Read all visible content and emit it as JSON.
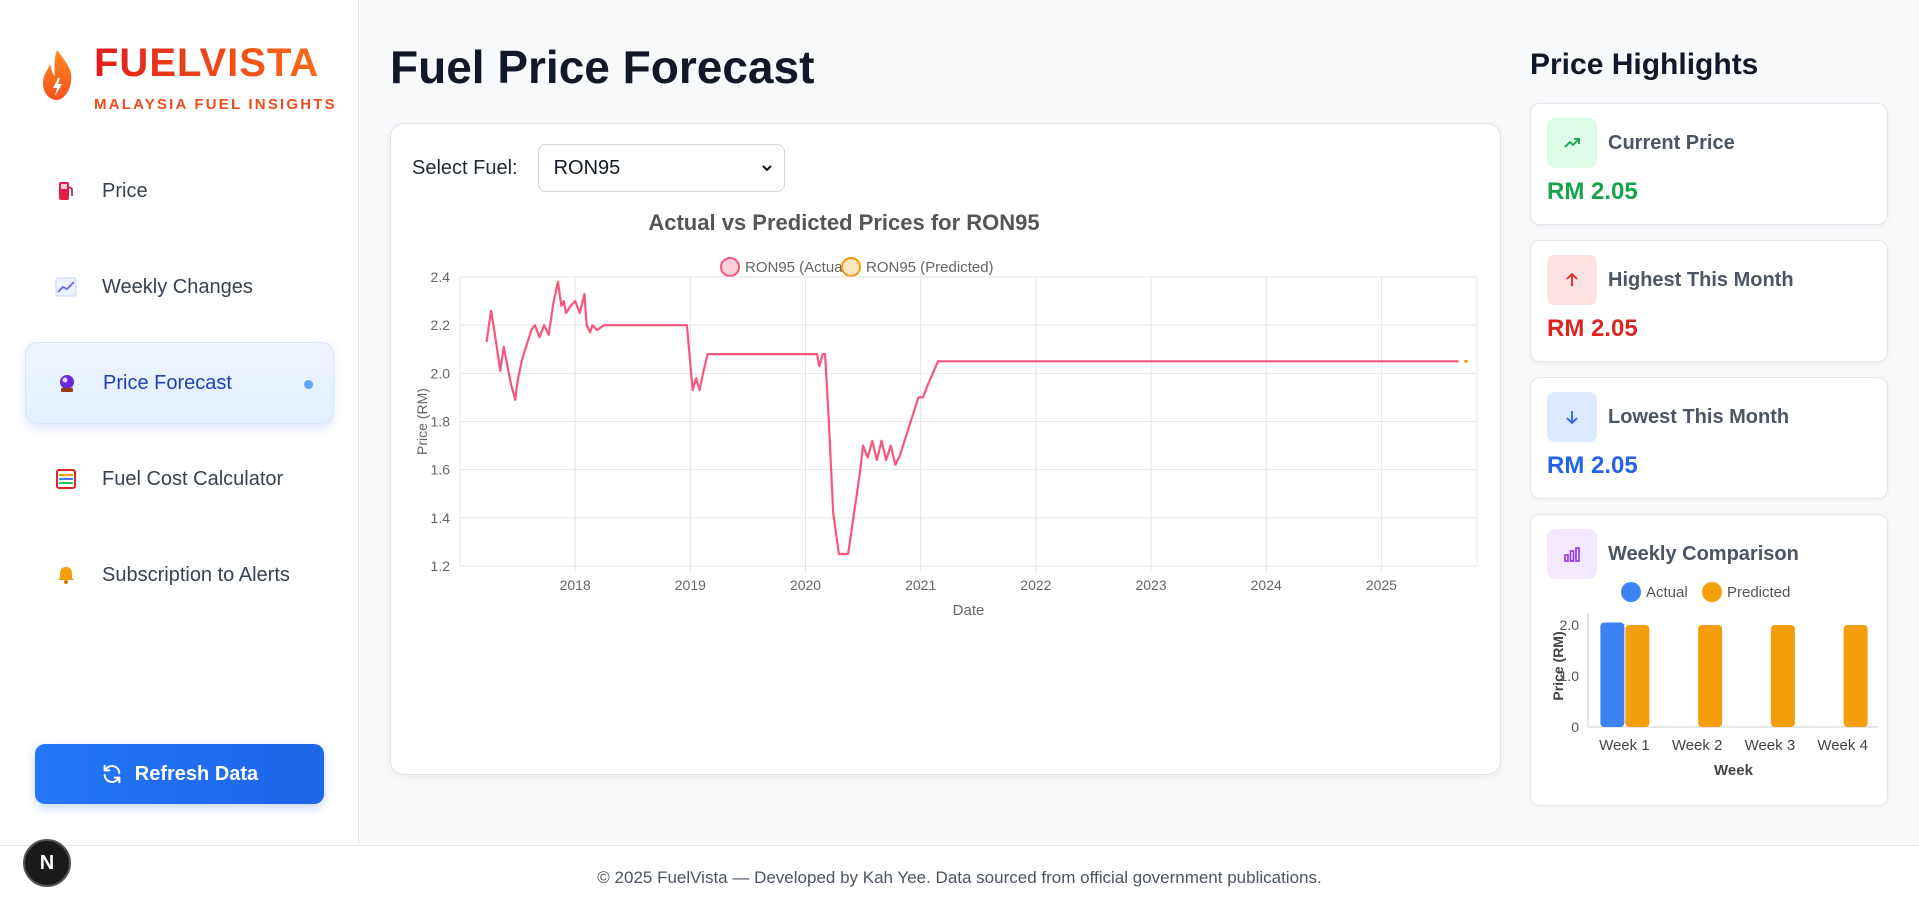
{
  "brand": {
    "title": "FUELVISTA",
    "subtitle": "MALAYSIA FUEL INSIGHTS"
  },
  "sidebar": {
    "items": [
      {
        "label": "Price",
        "icon": "fuel-pump-icon",
        "active": false
      },
      {
        "label": "Weekly Changes",
        "icon": "line-chart-icon",
        "active": false
      },
      {
        "label": "Price Forecast",
        "icon": "crystal-ball-icon",
        "active": true
      },
      {
        "label": "Fuel Cost Calculator",
        "icon": "abacus-icon",
        "active": false
      },
      {
        "label": "Subscription to Alerts",
        "icon": "bell-icon",
        "active": false
      }
    ],
    "refresh_label": "Refresh Data"
  },
  "main": {
    "title": "Fuel Price Forecast",
    "select_label": "Select Fuel:",
    "select_value": "RON95"
  },
  "highlights": {
    "title": "Price Highlights",
    "current": {
      "label": "Current Price",
      "value": "RM 2.05",
      "color": "#16a34a"
    },
    "highest": {
      "label": "Highest This Month",
      "value": "RM 2.05",
      "color": "#dc2626"
    },
    "lowest": {
      "label": "Lowest This Month",
      "value": "RM 2.05",
      "color": "#2563eb"
    },
    "weekly": {
      "label": "Weekly Comparison"
    }
  },
  "footer": {
    "text": "© 2025 FuelVista — Developed by Kah Yee. Data sourced from official government publications."
  },
  "badge": "N",
  "chart_data": [
    {
      "type": "line",
      "title": "Actual vs Predicted Prices for RON95",
      "xlabel": "Date",
      "ylabel": "Price (RM)",
      "ylim": [
        1.2,
        2.4
      ],
      "yticks": [
        "2.4",
        "2.2",
        "2.0",
        "1.8",
        "1.6",
        "1.4",
        "1.2"
      ],
      "xticks": [
        "2018",
        "2019",
        "2020",
        "2021",
        "2022",
        "2023",
        "2024",
        "2025"
      ],
      "legend": "top",
      "series": [
        {
          "name": "RON95 (Actual)",
          "color": "#f7567c",
          "x": [
            2017.23,
            2017.27,
            2017.31,
            2017.35,
            2017.38,
            2017.4,
            2017.44,
            2017.48,
            2017.5,
            2017.54,
            2017.58,
            2017.62,
            2017.65,
            2017.69,
            2017.73,
            2017.77,
            2017.81,
            2017.85,
            2017.88,
            2017.9,
            2017.92,
            2017.96,
            2018.0,
            2018.04,
            2018.08,
            2018.1,
            2018.13,
            2018.15,
            2018.19,
            2018.25,
            2018.4,
            2018.6,
            2018.8,
            2018.97,
            2019.02,
            2019.05,
            2019.08,
            2019.11,
            2019.15,
            2019.2,
            2019.6,
            2019.95,
            2020.1,
            2020.12,
            2020.15,
            2020.17,
            2020.2,
            2020.24,
            2020.29,
            2020.37,
            2020.43,
            2020.47,
            2020.5,
            2020.54,
            2020.58,
            2020.62,
            2020.66,
            2020.7,
            2020.74,
            2020.78,
            2020.82,
            2020.86,
            2020.9,
            2020.94,
            2020.98,
            2021.02,
            2021.06,
            2021.15,
            2021.3,
            2022.0,
            2023.0,
            2024.0,
            2025.0,
            2025.67
          ],
          "y": [
            2.13,
            2.26,
            2.14,
            2.01,
            2.11,
            2.06,
            1.96,
            1.89,
            1.97,
            2.06,
            2.12,
            2.18,
            2.2,
            2.15,
            2.2,
            2.16,
            2.29,
            2.38,
            2.28,
            2.3,
            2.25,
            2.28,
            2.3,
            2.25,
            2.33,
            2.2,
            2.17,
            2.2,
            2.18,
            2.2,
            2.2,
            2.2,
            2.2,
            2.2,
            1.93,
            1.98,
            1.93,
            2.0,
            2.08,
            2.08,
            2.08,
            2.08,
            2.08,
            2.03,
            2.08,
            2.08,
            1.82,
            1.42,
            1.25,
            1.25,
            1.45,
            1.58,
            1.7,
            1.65,
            1.72,
            1.64,
            1.72,
            1.64,
            1.7,
            1.62,
            1.66,
            1.72,
            1.78,
            1.84,
            1.9,
            1.9,
            1.95,
            2.05,
            2.05,
            2.05,
            2.05,
            2.05,
            2.05,
            2.05
          ]
        },
        {
          "name": "RON95 (Predicted)",
          "color": "#f59e0b",
          "x": [
            2025.72,
            2025.75
          ],
          "y": [
            2.05,
            2.05
          ]
        }
      ]
    },
    {
      "type": "bar",
      "xlabel": "Week",
      "ylabel": "Price (RM)",
      "ylim": [
        0,
        2.0
      ],
      "yticks": [
        "2.0",
        "1.0",
        "0"
      ],
      "legend": "top",
      "categories": [
        "Week 1",
        "Week 2",
        "Week 3",
        "Week 4"
      ],
      "series": [
        {
          "name": "Actual",
          "color": "#3b82f6",
          "values": [
            2.05,
            null,
            null,
            null
          ]
        },
        {
          "name": "Predicted",
          "color": "#f59e0b",
          "values": [
            2.0,
            2.0,
            2.0,
            2.0
          ]
        }
      ]
    }
  ]
}
